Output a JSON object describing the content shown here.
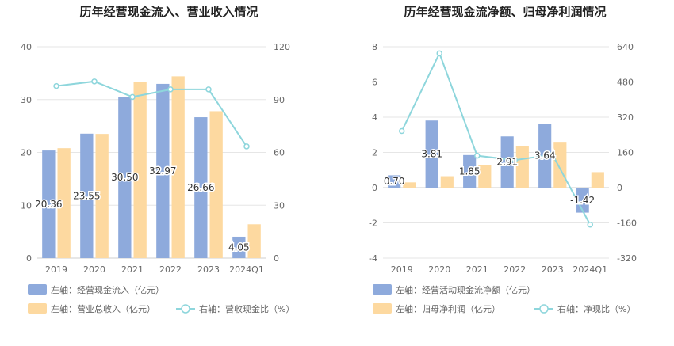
{
  "colors": {
    "bar_primary": "#8eaadc",
    "bar_secondary": "#fdd9a0",
    "line": "#8ed6dc",
    "grid": "#e6e6e6",
    "axis_text": "#666666",
    "title_text": "#222222",
    "legend_text": "#666666"
  },
  "chart_data": [
    {
      "type": "bar",
      "title": "历年经营现金流入、营业收入情况",
      "categories": [
        "2019",
        "2020",
        "2021",
        "2022",
        "2023",
        "2024Q1"
      ],
      "left_axis": {
        "ticks": [
          0,
          10,
          20,
          30,
          40
        ],
        "ylim": [
          0,
          40
        ]
      },
      "right_axis": {
        "ticks": [
          0,
          30,
          60,
          90,
          120
        ],
        "ylim": [
          0,
          120
        ]
      },
      "series": [
        {
          "name": "左轴：经营现金流入（亿元）",
          "kind": "bar",
          "axis": "left",
          "values": [
            20.36,
            23.55,
            30.5,
            32.97,
            26.66,
            4.05
          ],
          "labels": [
            "20.36",
            "23.55",
            "30.50",
            "32.97",
            "26.66",
            "4.05"
          ]
        },
        {
          "name": "左轴：营业总收入（亿元）",
          "kind": "bar",
          "axis": "left",
          "values": [
            20.8,
            23.5,
            33.3,
            34.4,
            27.8,
            6.4
          ]
        },
        {
          "name": "右轴：营收现金比（%）",
          "kind": "line",
          "axis": "right",
          "values": [
            97.7,
            100.3,
            91.5,
            95.8,
            95.8,
            63.4
          ]
        }
      ],
      "legend": [
        {
          "label": "左轴：经营现金流入（亿元）",
          "kind": "bar",
          "series": 0
        },
        {
          "label": "左轴：营业总收入（亿元）",
          "kind": "bar",
          "series": 1
        },
        {
          "label": "右轴：营收现金比（%）",
          "kind": "line",
          "series": 2
        }
      ],
      "legend_position": "bottom",
      "grid": true
    },
    {
      "type": "bar",
      "title": "历年经营现金流净额、归母净利润情况",
      "categories": [
        "2019",
        "2020",
        "2021",
        "2022",
        "2023",
        "2024Q1"
      ],
      "left_axis": {
        "ticks": [
          -4,
          -2,
          0,
          2,
          4,
          6,
          8
        ],
        "ylim": [
          -4,
          8
        ]
      },
      "right_axis": {
        "ticks": [
          -320,
          -160,
          0,
          160,
          320,
          480,
          640
        ],
        "ylim": [
          -320,
          640
        ]
      },
      "series": [
        {
          "name": "左轴：经营活动现金流净额（亿元）",
          "kind": "bar",
          "axis": "left",
          "values": [
            0.7,
            3.81,
            1.85,
            2.91,
            3.64,
            -1.42
          ],
          "labels": [
            "0.70",
            "3.81",
            "1.85",
            "2.91",
            "3.64",
            "-1.42"
          ]
        },
        {
          "name": "左轴：归母净利润（亿元）",
          "kind": "bar",
          "axis": "left",
          "values": [
            0.3,
            0.65,
            1.3,
            2.35,
            2.6,
            0.88
          ]
        },
        {
          "name": "右轴：净现比（%）",
          "kind": "line",
          "axis": "right",
          "values": [
            257,
            610,
            145,
            125,
            150,
            -168
          ]
        }
      ],
      "legend": [
        {
          "label": "左轴：经营活动现金流净额（亿元）",
          "kind": "bar",
          "series": 0
        },
        {
          "label": "左轴：归母净利润（亿元）",
          "kind": "bar",
          "series": 1
        },
        {
          "label": "右轴：净现比（%）",
          "kind": "line",
          "series": 2
        }
      ],
      "legend_position": "bottom",
      "grid": true
    }
  ]
}
